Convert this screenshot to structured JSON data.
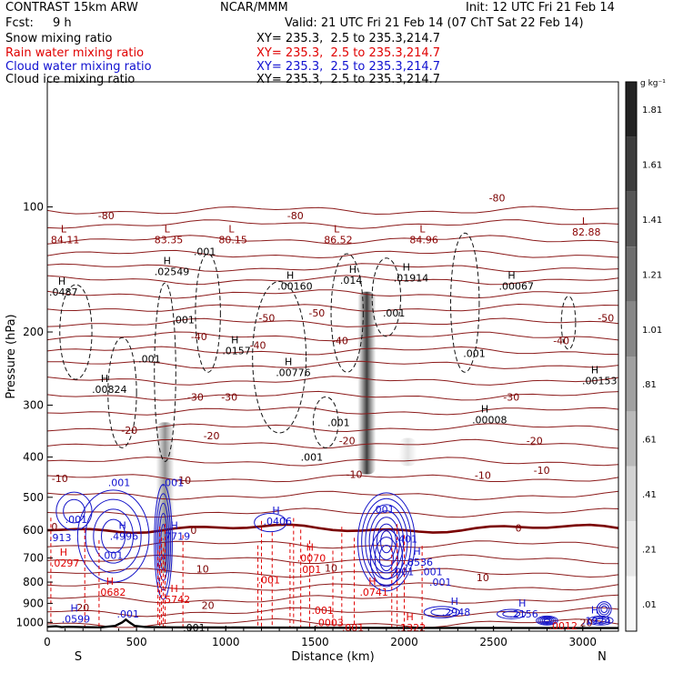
{
  "header": {
    "model": "CONTRAST 15km ARW",
    "center": "NCAR/MMM",
    "init": "Init: 12 UTC Fri 21 Feb 14",
    "fcst_label": "Fcst:",
    "fcst_value": "9 h",
    "valid": "Valid: 21 UTC Fri 21 Feb 14 (07 ChT Sat 22 Feb 14)"
  },
  "legend": [
    {
      "name": "Snow mixing ratio",
      "xy": "XY= 235.3,  2.5 to 235.3,214.7",
      "color": "#000000"
    },
    {
      "name": "Rain water mixing ratio",
      "xy": "XY= 235.3,  2.5 to 235.3,214.7",
      "color": "#e00000"
    },
    {
      "name": "Cloud water mixing ratio",
      "xy": "XY= 235.3,  2.5 to 235.3,214.7",
      "color": "#1010d0"
    },
    {
      "name": "Cloud ice mixing ratio",
      "xy": "XY= 235.3,  2.5 to 235.3,214.7",
      "color": "#000000"
    }
  ],
  "chart_data": {
    "type": "heatmap",
    "xlabel": "Distance (km)",
    "ylabel": "Pressure (hPa)",
    "xlim": [
      0,
      3200
    ],
    "ylim": [
      1050,
      50
    ],
    "y_scale": "log-pressure",
    "x_ticks": [
      "0",
      "500",
      "1000",
      "1500",
      "2000",
      "2500",
      "3000"
    ],
    "x_tick_values": [
      0,
      500,
      1000,
      1500,
      2000,
      2500,
      3000
    ],
    "y_ticks": [
      "100",
      "200",
      "300",
      "400",
      "500",
      "600",
      "700",
      "800",
      "900",
      "1000"
    ],
    "y_tick_values": [
      100,
      200,
      300,
      400,
      500,
      600,
      700,
      800,
      900,
      1000
    ],
    "x_endpoints": {
      "left": "S",
      "right": "N"
    },
    "colorbar": {
      "unit": "g kg⁻¹",
      "labels": [
        "1.81",
        "1.61",
        "1.41",
        "1.21",
        "1.01",
        ".81",
        ".61",
        ".41",
        ".21",
        ".01"
      ],
      "levels": [
        1.81,
        1.61,
        1.41,
        1.21,
        1.01,
        0.81,
        0.61,
        0.41,
        0.21,
        0.01
      ],
      "colors": [
        "#222222",
        "#3c3c3c",
        "#555555",
        "#6e6e6e",
        "#878787",
        "#a0a0a0",
        "#b9b9b9",
        "#d2d2d2",
        "#e6e6e6",
        "#f8f8f8"
      ]
    },
    "temperature_labels": [
      {
        "x": 330,
        "p": 105,
        "t": "-80"
      },
      {
        "x": 1390,
        "p": 105,
        "t": "-80"
      },
      {
        "x": 2520,
        "p": 95,
        "t": "-80"
      },
      {
        "x": 3130,
        "p": 185,
        "t": "-50"
      },
      {
        "x": 1230,
        "p": 185,
        "t": "-50"
      },
      {
        "x": 1510,
        "p": 180,
        "t": "-50"
      },
      {
        "x": 850,
        "p": 205,
        "t": "-40"
      },
      {
        "x": 1180,
        "p": 215,
        "t": "-40"
      },
      {
        "x": 1640,
        "p": 210,
        "t": "-40"
      },
      {
        "x": 2880,
        "p": 210,
        "t": "-40"
      },
      {
        "x": 830,
        "p": 287,
        "t": "-30"
      },
      {
        "x": 1020,
        "p": 287,
        "t": "-30"
      },
      {
        "x": 2600,
        "p": 287,
        "t": "-30"
      },
      {
        "x": 460,
        "p": 345,
        "t": "-20"
      },
      {
        "x": 920,
        "p": 355,
        "t": "-20"
      },
      {
        "x": 1680,
        "p": 365,
        "t": "-20"
      },
      {
        "x": 2730,
        "p": 365,
        "t": "-20"
      },
      {
        "x": 70,
        "p": 450,
        "t": "-10"
      },
      {
        "x": 760,
        "p": 455,
        "t": "-10"
      },
      {
        "x": 1720,
        "p": 440,
        "t": "-10"
      },
      {
        "x": 2440,
        "p": 442,
        "t": "-10"
      },
      {
        "x": 2770,
        "p": 430,
        "t": "-10"
      },
      {
        "x": 40,
        "p": 588,
        "t": "0"
      },
      {
        "x": 820,
        "p": 600,
        "t": "0"
      },
      {
        "x": 2640,
        "p": 593,
        "t": "0"
      },
      {
        "x": 870,
        "p": 744,
        "t": "10"
      },
      {
        "x": 2440,
        "p": 780,
        "t": "10"
      },
      {
        "x": 1590,
        "p": 740,
        "t": "10"
      },
      {
        "x": 200,
        "p": 920,
        "t": "20"
      },
      {
        "x": 900,
        "p": 910,
        "t": "20"
      },
      {
        "x": 3020,
        "p": 1002,
        "t": "20"
      }
    ],
    "extrema": [
      {
        "x": 20,
        "p": 120,
        "mark": "L",
        "value": "84.11",
        "color": "#8b0000"
      },
      {
        "x": 600,
        "p": 120,
        "mark": "L",
        "value": "83.35",
        "color": "#8b0000"
      },
      {
        "x": 960,
        "p": 120,
        "mark": "L",
        "value": "80.15",
        "color": "#8b0000"
      },
      {
        "x": 1550,
        "p": 120,
        "mark": "L",
        "value": "86.52",
        "color": "#8b0000"
      },
      {
        "x": 2030,
        "p": 120,
        "mark": "L",
        "value": "84.96",
        "color": "#8b0000"
      },
      {
        "x": 2940,
        "p": 115,
        "mark": "L",
        "value": "82.88",
        "color": "#8b0000"
      },
      {
        "x": 10,
        "p": 160,
        "mark": "H",
        "value": ".0487",
        "color": "#000000"
      },
      {
        "x": 600,
        "p": 143,
        "mark": "H",
        "value": ".02549",
        "color": "#000000"
      },
      {
        "x": 820,
        "p": 128,
        "mark": "",
        "value": ".001",
        "color": "#000000"
      },
      {
        "x": 1290,
        "p": 155,
        "mark": "H",
        "value": ".00160",
        "color": "#000000"
      },
      {
        "x": 1640,
        "p": 150,
        "mark": "H",
        "value": ".014",
        "color": "#000000"
      },
      {
        "x": 1940,
        "p": 148,
        "mark": "H",
        "value": ".01914",
        "color": "#000000"
      },
      {
        "x": 2530,
        "p": 155,
        "mark": "H",
        "value": ".00067",
        "color": "#000000"
      },
      {
        "x": 700,
        "p": 187,
        "mark": "",
        "value": ".001",
        "color": "#000000"
      },
      {
        "x": 1880,
        "p": 180,
        "mark": "",
        "value": ".001",
        "color": "#000000"
      },
      {
        "x": 510,
        "p": 232,
        "mark": "",
        "value": ".001",
        "color": "#000000"
      },
      {
        "x": 980,
        "p": 222,
        "mark": "H",
        "value": ".0157",
        "color": "#000000"
      },
      {
        "x": 1280,
        "p": 250,
        "mark": "H",
        "value": ".00776",
        "color": "#000000"
      },
      {
        "x": 2330,
        "p": 225,
        "mark": "",
        "value": ".001",
        "color": "#000000"
      },
      {
        "x": 3000,
        "p": 262,
        "mark": "H",
        "value": ".00153",
        "color": "#000000"
      },
      {
        "x": 250,
        "p": 275,
        "mark": "H",
        "value": ".00824",
        "color": "#000000"
      },
      {
        "x": 1570,
        "p": 330,
        "mark": "",
        "value": ".001",
        "color": "#000000"
      },
      {
        "x": 2380,
        "p": 325,
        "mark": "H",
        "value": ".00008",
        "color": "#000000"
      },
      {
        "x": 1420,
        "p": 400,
        "mark": "",
        "value": ".001",
        "color": "#000000"
      },
      {
        "x": 340,
        "p": 460,
        "mark": "",
        "value": ".001",
        "color": "#1010d0"
      },
      {
        "x": 640,
        "p": 460,
        "mark": "",
        "value": ".001",
        "color": "#1010d0"
      },
      {
        "x": 100,
        "p": 565,
        "mark": "",
        "value": ".001",
        "color": "#1010d0"
      },
      {
        "x": 1820,
        "p": 535,
        "mark": "",
        "value": ".001",
        "color": "#1010d0"
      },
      {
        "x": 1210,
        "p": 570,
        "mark": "H",
        "value": ".0406",
        "color": "#1010d0"
      },
      {
        "x": 10,
        "p": 625,
        "mark": "",
        "value": ".913",
        "color": "#1010d0"
      },
      {
        "x": 350,
        "p": 620,
        "mark": "H",
        "value": ".4996",
        "color": "#1010d0"
      },
      {
        "x": 640,
        "p": 620,
        "mark": "H",
        "value": ".7719",
        "color": "#1010d0"
      },
      {
        "x": 1950,
        "p": 630,
        "mark": "",
        "value": ".401",
        "color": "#1010d0"
      },
      {
        "x": 300,
        "p": 690,
        "mark": "",
        "value": ".001",
        "color": "#1010d0"
      },
      {
        "x": 2000,
        "p": 715,
        "mark": "H",
        "value": ".8536",
        "color": "#1010d0"
      },
      {
        "x": 1930,
        "p": 755,
        "mark": "",
        "value": ".001",
        "color": "#1010d0"
      },
      {
        "x": 2090,
        "p": 755,
        "mark": "",
        "value": ".001",
        "color": "#1010d0"
      },
      {
        "x": 2140,
        "p": 800,
        "mark": "",
        "value": ".001",
        "color": "#1010d0"
      },
      {
        "x": 80,
        "p": 980,
        "mark": "H",
        "value": ".0599",
        "color": "#1010d0"
      },
      {
        "x": 390,
        "p": 955,
        "mark": "",
        "value": ".001",
        "color": "#1010d0"
      },
      {
        "x": 2210,
        "p": 945,
        "mark": "H",
        "value": ".2948",
        "color": "#1010d0"
      },
      {
        "x": 2590,
        "p": 955,
        "mark": "H",
        "value": ".2156",
        "color": "#1010d0"
      },
      {
        "x": 3100,
        "p": 990,
        "mark": "H",
        "value": ".1924",
        "color": "#1010d0"
      },
      {
        "x": 20,
        "p": 720,
        "mark": "H",
        "value": ".0297",
        "color": "#e00000"
      },
      {
        "x": 1400,
        "p": 700,
        "mark": "H",
        "value": ".0070",
        "color": "#e00000"
      },
      {
        "x": 1410,
        "p": 745,
        "mark": "",
        "value": ".001",
        "color": "#e00000"
      },
      {
        "x": 1180,
        "p": 790,
        "mark": "",
        "value": ".001",
        "color": "#e00000"
      },
      {
        "x": 280,
        "p": 845,
        "mark": "H",
        "value": ".0682",
        "color": "#e00000"
      },
      {
        "x": 1750,
        "p": 845,
        "mark": "H",
        "value": ".0741",
        "color": "#e00000"
      },
      {
        "x": 640,
        "p": 880,
        "mark": "H",
        "value": ".5742",
        "color": "#e00000"
      },
      {
        "x": 1480,
        "p": 935,
        "mark": "",
        "value": ".001",
        "color": "#e00000"
      },
      {
        "x": 1500,
        "p": 1000,
        "mark": "",
        "value": ".0003",
        "color": "#e00000"
      },
      {
        "x": 1650,
        "p": 1030,
        "mark": "",
        "value": ".001",
        "color": "#e00000"
      },
      {
        "x": 1960,
        "p": 1030,
        "mark": "H",
        "value": ".1322",
        "color": "#e00000"
      },
      {
        "x": 2810,
        "p": 1020,
        "mark": "",
        "value": ".0012",
        "color": "#e00000"
      },
      {
        "x": 760,
        "p": 1030,
        "mark": "",
        "value": ".001",
        "color": "#000000"
      }
    ],
    "ice_columns": [
      {
        "x": 660,
        "p_top": 330,
        "p_bottom": 760,
        "intensity": 0.55
      },
      {
        "x": 1790,
        "p_top": 160,
        "p_bottom": 440,
        "intensity": 0.95
      },
      {
        "x": 2020,
        "p_top": 360,
        "p_bottom": 420,
        "intensity": 0.15
      }
    ],
    "terrain_surface_hPa": [
      [
        0,
        1025
      ],
      [
        50,
        1022
      ],
      [
        80,
        1027
      ],
      [
        120,
        1025
      ],
      [
        200,
        1027
      ],
      [
        300,
        1028
      ],
      [
        380,
        1020
      ],
      [
        420,
        1000
      ],
      [
        440,
        985
      ],
      [
        460,
        1000
      ],
      [
        490,
        1020
      ],
      [
        550,
        1026
      ],
      [
        700,
        1028
      ],
      [
        1000,
        1029
      ],
      [
        1500,
        1030
      ],
      [
        2000,
        1031
      ],
      [
        2500,
        1031
      ],
      [
        3000,
        1032
      ],
      [
        3200,
        1032
      ]
    ]
  }
}
